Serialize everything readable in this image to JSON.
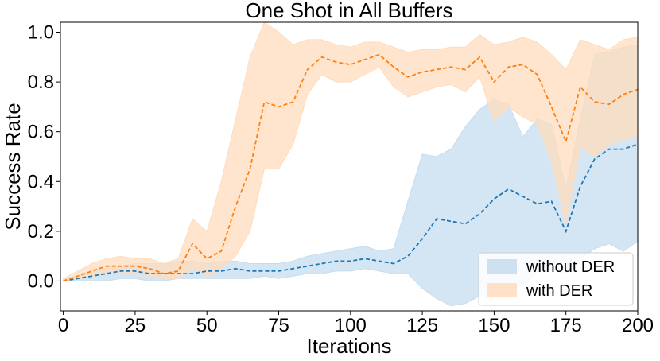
{
  "chart_data": {
    "type": "line",
    "title": "One Shot in All Buffers",
    "xlabel": "Iterations",
    "ylabel": "Success Rate",
    "xlim": [
      -1,
      200
    ],
    "ylim": [
      -0.12,
      1.04
    ],
    "xticks": [
      0,
      25,
      50,
      75,
      100,
      125,
      150,
      175,
      200
    ],
    "xtick_labels": [
      "0",
      "25",
      "50",
      "75",
      "100",
      "125",
      "150",
      "175",
      "200"
    ],
    "yticks": [
      0.0,
      0.2,
      0.4,
      0.6,
      0.8,
      1.0
    ],
    "ytick_labels": [
      "0.0",
      "0.2",
      "0.4",
      "0.6",
      "0.8",
      "1.0"
    ],
    "grid": false,
    "legend_position": "bottom-right",
    "x": [
      0,
      5,
      10,
      15,
      20,
      25,
      30,
      35,
      40,
      45,
      50,
      55,
      60,
      65,
      70,
      75,
      80,
      85,
      90,
      95,
      100,
      105,
      110,
      115,
      120,
      125,
      130,
      135,
      140,
      145,
      150,
      155,
      160,
      165,
      170,
      175,
      180,
      185,
      190,
      195,
      200
    ],
    "series": [
      {
        "name": "without DER",
        "color": "#1f77b4",
        "fill": "#c5dcef",
        "mean": [
          0.0,
          0.01,
          0.02,
          0.03,
          0.04,
          0.04,
          0.03,
          0.03,
          0.03,
          0.03,
          0.04,
          0.04,
          0.05,
          0.04,
          0.04,
          0.04,
          0.05,
          0.06,
          0.07,
          0.08,
          0.08,
          0.09,
          0.08,
          0.07,
          0.1,
          0.17,
          0.25,
          0.24,
          0.23,
          0.27,
          0.33,
          0.37,
          0.34,
          0.31,
          0.32,
          0.2,
          0.38,
          0.49,
          0.53,
          0.53,
          0.55
        ],
        "lower": [
          0.0,
          0.0,
          0.0,
          0.0,
          0.01,
          0.01,
          0.0,
          0.0,
          0.01,
          0.01,
          0.01,
          0.01,
          0.01,
          0.01,
          0.02,
          0.01,
          0.02,
          0.03,
          0.03,
          0.04,
          0.04,
          0.05,
          0.04,
          0.03,
          0.03,
          -0.03,
          -0.07,
          -0.1,
          -0.09,
          -0.06,
          -0.04,
          -0.02,
          -0.02,
          0.04,
          0.05,
          0.03,
          0.09,
          0.13,
          0.15,
          0.12,
          0.16
        ],
        "upper": [
          0.01,
          0.02,
          0.04,
          0.05,
          0.06,
          0.07,
          0.07,
          0.07,
          0.08,
          0.08,
          0.07,
          0.08,
          0.08,
          0.07,
          0.07,
          0.07,
          0.08,
          0.1,
          0.11,
          0.12,
          0.13,
          0.14,
          0.12,
          0.13,
          0.32,
          0.51,
          0.5,
          0.53,
          0.62,
          0.69,
          0.73,
          0.71,
          0.58,
          0.65,
          0.63,
          0.37,
          0.65,
          0.91,
          0.92,
          0.94,
          0.95
        ]
      },
      {
        "name": "with DER",
        "color": "#ff7f0e",
        "fill": "#ffdcbd",
        "mean": [
          0.0,
          0.02,
          0.04,
          0.06,
          0.06,
          0.06,
          0.05,
          0.03,
          0.04,
          0.15,
          0.09,
          0.12,
          0.3,
          0.45,
          0.72,
          0.7,
          0.72,
          0.85,
          0.9,
          0.88,
          0.87,
          0.89,
          0.91,
          0.86,
          0.82,
          0.84,
          0.85,
          0.86,
          0.85,
          0.9,
          0.8,
          0.86,
          0.87,
          0.83,
          0.7,
          0.56,
          0.78,
          0.72,
          0.71,
          0.75,
          0.77
        ],
        "lower": [
          0.0,
          0.01,
          0.02,
          0.03,
          0.03,
          0.03,
          0.02,
          0.01,
          0.01,
          0.05,
          0.02,
          0.05,
          0.1,
          0.2,
          0.45,
          0.45,
          0.55,
          0.75,
          0.83,
          0.8,
          0.8,
          0.83,
          0.86,
          0.78,
          0.74,
          0.76,
          0.78,
          0.79,
          0.76,
          0.82,
          0.64,
          0.7,
          0.66,
          0.63,
          0.48,
          0.23,
          0.54,
          0.5,
          0.55,
          0.57,
          0.58
        ],
        "upper": [
          0.01,
          0.04,
          0.07,
          0.09,
          0.1,
          0.09,
          0.09,
          0.07,
          0.09,
          0.25,
          0.2,
          0.4,
          0.65,
          0.9,
          1.05,
          1.0,
          0.95,
          0.97,
          0.97,
          0.95,
          0.94,
          0.96,
          0.96,
          0.94,
          0.92,
          0.93,
          0.93,
          0.94,
          0.94,
          0.99,
          0.95,
          0.96,
          0.98,
          0.96,
          0.91,
          0.85,
          0.97,
          0.95,
          0.93,
          0.97,
          0.98
        ]
      }
    ]
  }
}
